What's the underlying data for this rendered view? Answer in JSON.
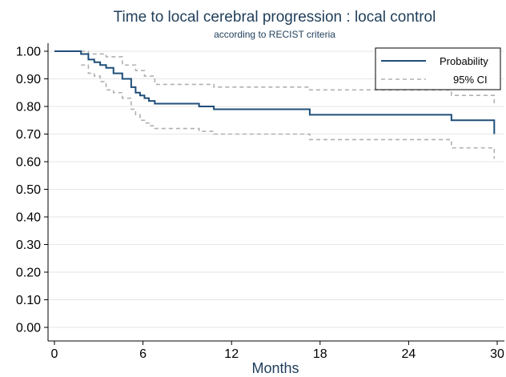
{
  "chart_data": {
    "type": "line",
    "title": "Time to local cerebral progression : local control",
    "subtitle": "according to RECIST criteria",
    "xlabel": "Months",
    "ylabel": "",
    "xlim": [
      0,
      30
    ],
    "ylim": [
      0,
      1
    ],
    "x_ticks": [
      0,
      6,
      12,
      18,
      24,
      30
    ],
    "x_tick_labels": [
      "0",
      "6",
      "12",
      "18",
      "24",
      "30"
    ],
    "y_ticks": [
      0,
      0.1,
      0.2,
      0.3,
      0.4,
      0.5,
      0.6,
      0.7,
      0.8,
      0.9,
      1.0
    ],
    "y_tick_labels": [
      "0.00",
      "0.10",
      "0.20",
      "0.30",
      "0.40",
      "0.50",
      "0.60",
      "0.70",
      "0.80",
      "0.90",
      "1.00"
    ],
    "grid": true,
    "legend_position": "top-right",
    "series": [
      {
        "name": "Probability",
        "style": "solid",
        "color": "#1f4e79",
        "x": [
          0,
          1.8,
          2.3,
          2.7,
          3.1,
          3.5,
          4.0,
          4.6,
          5.2,
          5.5,
          5.8,
          6.1,
          6.4,
          6.8,
          9.8,
          10.8,
          17.3,
          26.9,
          29.8
        ],
        "y": [
          1.0,
          0.99,
          0.97,
          0.96,
          0.95,
          0.94,
          0.92,
          0.9,
          0.87,
          0.85,
          0.84,
          0.83,
          0.82,
          0.81,
          0.8,
          0.79,
          0.77,
          0.75,
          0.7
        ]
      },
      {
        "name": "95% CI",
        "style": "dashed",
        "color": "#b0b0b0",
        "x": [
          1.8,
          2.3,
          3.5,
          4.6,
          5.5,
          6.1,
          6.8,
          10.8,
          17.3,
          26.9,
          29.8
        ],
        "y": [
          1.0,
          0.99,
          0.98,
          0.95,
          0.93,
          0.91,
          0.88,
          0.87,
          0.86,
          0.84,
          0.8
        ]
      },
      {
        "name": "",
        "style": "dashed",
        "color": "#b0b0b0",
        "x": [
          1.8,
          2.3,
          2.7,
          3.1,
          3.5,
          4.0,
          4.6,
          5.2,
          5.5,
          5.8,
          6.1,
          6.4,
          6.8,
          9.8,
          10.8,
          17.3,
          26.9,
          29.8
        ],
        "y": [
          0.95,
          0.92,
          0.91,
          0.89,
          0.86,
          0.85,
          0.83,
          0.79,
          0.77,
          0.75,
          0.74,
          0.73,
          0.72,
          0.71,
          0.7,
          0.68,
          0.65,
          0.61
        ]
      }
    ]
  }
}
